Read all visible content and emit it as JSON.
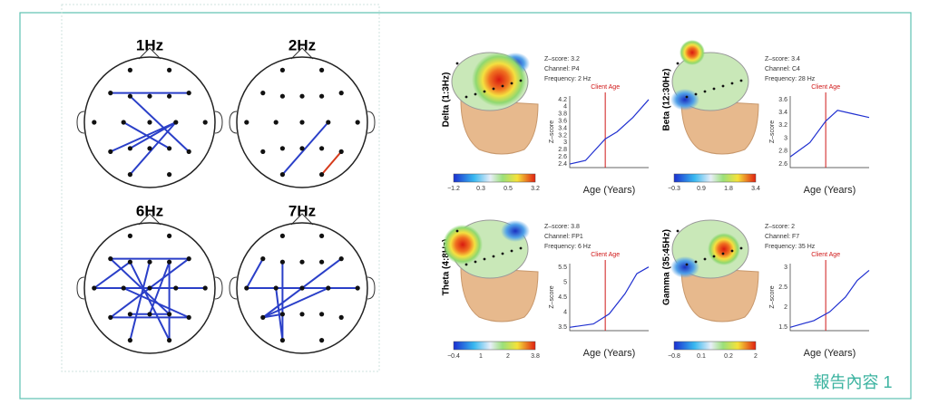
{
  "left_panel": {
    "diagrams": [
      {
        "title": "1Hz"
      },
      {
        "title": "2Hz"
      },
      {
        "title": "6Hz"
      },
      {
        "title": "7Hz"
      }
    ]
  },
  "right_panel": {
    "maps": [
      {
        "band": "Delta (1:3Hz)",
        "info": [
          "Z–score: 3.2",
          "Channel: P4",
          "Frequency: 2 Hz"
        ],
        "y_label": "Z–score",
        "x_label": "Age (Years)",
        "marker": "Client Age",
        "yticks": [
          "4.2",
          "4",
          "3.8",
          "3.6",
          "3.4",
          "3.2",
          "3",
          "2.8",
          "2.6",
          "2.4"
        ],
        "colorbar_ticks": [
          "−1.2",
          "0.3",
          "0.5",
          "3.2"
        ]
      },
      {
        "band": "Beta (12:30Hz)",
        "info": [
          "Z–score: 3.4",
          "Channel: C4",
          "Frequency: 28 Hz"
        ],
        "y_label": "Z–score",
        "x_label": "Age (Years)",
        "marker": "Client Age",
        "yticks": [
          "3.6",
          "3.4",
          "3.2",
          "3",
          "2.8",
          "2.6"
        ],
        "colorbar_ticks": [
          "−0.3",
          "0.9",
          "1.8",
          "3.4"
        ]
      },
      {
        "band": "Theta (4:8Hz)",
        "info": [
          "Z–score: 3.8",
          "Channel: FP1",
          "Frequency: 6 Hz"
        ],
        "y_label": "Z–score",
        "x_label": "Age (Years)",
        "marker": "Client Age",
        "yticks": [
          "5.5",
          "5",
          "4.5",
          "4",
          "3.5"
        ],
        "colorbar_ticks": [
          "−0.4",
          "1",
          "2",
          "3.8"
        ]
      },
      {
        "band": "Gamma (35:45Hz)",
        "info": [
          "Z–score: 2",
          "Channel: F7",
          "Frequency: 35 Hz"
        ],
        "y_label": "Z–score",
        "x_label": "Age (Years)",
        "marker": "Client Age",
        "yticks": [
          "3",
          "2.5",
          "2",
          "1.5"
        ],
        "colorbar_ticks": [
          "−0.8",
          "0.1",
          "0.2",
          "2"
        ]
      }
    ]
  },
  "caption": "報告內容 1"
}
